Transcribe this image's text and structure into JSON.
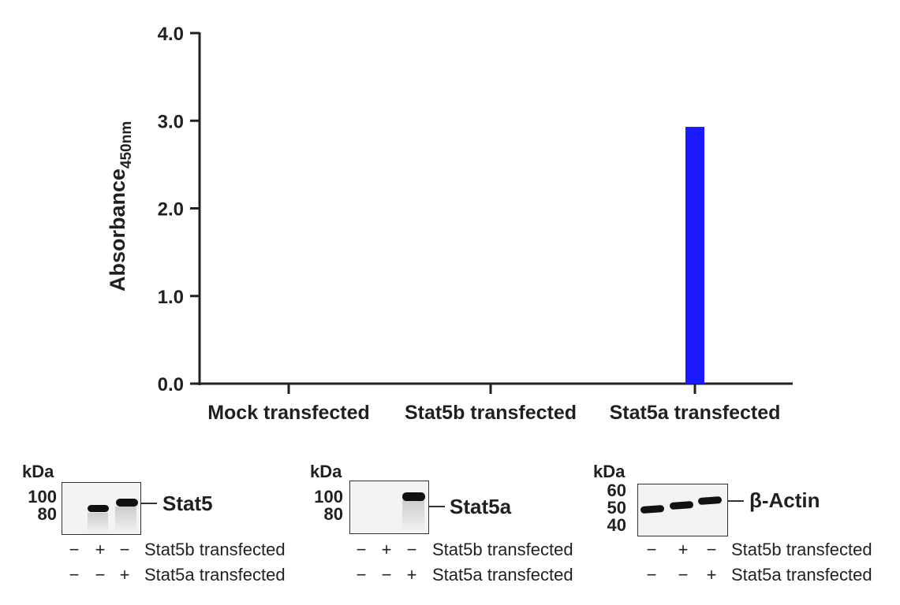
{
  "chart_data": {
    "type": "bar",
    "title": "",
    "xlabel": "",
    "ylabel": "Absorbance",
    "ylabel_sub": "450nm",
    "ylim": [
      0,
      4.0
    ],
    "yticks": [
      "0.0",
      "1.0",
      "2.0",
      "3.0",
      "4.0"
    ],
    "categories": [
      "Mock transfected",
      "Stat5b transfected",
      "Stat5a transfected"
    ],
    "values": [
      0,
      0,
      2.93
    ],
    "bar_color": "#1a1aff",
    "grid": false
  },
  "blots": [
    {
      "kda_label": "kDa",
      "markers": [
        "100",
        "80"
      ],
      "target": "Stat5",
      "row1": [
        "−",
        "+",
        "−"
      ],
      "row2": [
        "−",
        "−",
        "+"
      ],
      "row1_label": "Stat5b transfected",
      "row2_label": "Stat5a transfected"
    },
    {
      "kda_label": "kDa",
      "markers": [
        "100",
        "80"
      ],
      "target": "Stat5a",
      "row1": [
        "−",
        "+",
        "−"
      ],
      "row2": [
        "−",
        "−",
        "+"
      ],
      "row1_label": "Stat5b transfected",
      "row2_label": "Stat5a transfected"
    },
    {
      "kda_label": "kDa",
      "markers": [
        "60",
        "50",
        "40"
      ],
      "target": "β-Actin",
      "row1": [
        "−",
        "+",
        "−"
      ],
      "row2": [
        "−",
        "−",
        "+"
      ],
      "row1_label": "Stat5b transfected",
      "row2_label": "Stat5a transfected"
    }
  ]
}
